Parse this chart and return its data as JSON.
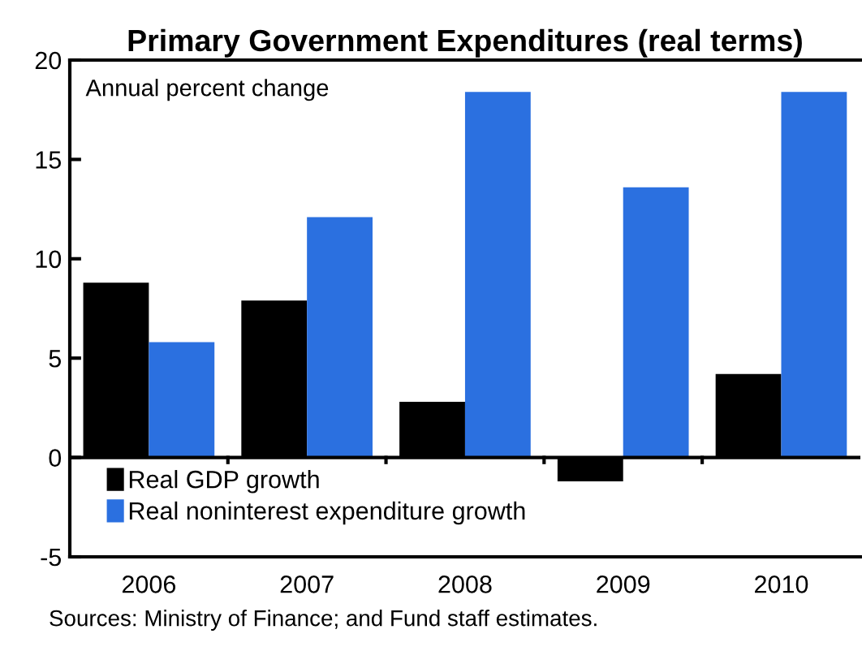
{
  "chart_data": {
    "type": "bar",
    "title": "Primary Government Expenditures (real terms)",
    "categories": [
      "2006",
      "2007",
      "2008",
      "2009",
      "2010"
    ],
    "series": [
      {
        "name": "Real GDP growth",
        "color": "#000000",
        "values": [
          8.8,
          7.9,
          2.8,
          -1.2,
          4.2
        ]
      },
      {
        "name": "Real noninterest expenditure growth",
        "color": "#2b70e0",
        "values": [
          5.8,
          12.1,
          18.4,
          13.6,
          18.4
        ]
      }
    ],
    "ylim": [
      -5,
      20
    ],
    "yticks": [
      {
        "value": -5,
        "label": "-5"
      },
      0,
      5,
      10,
      15,
      20
    ],
    "legend": "bottom left",
    "annotations": [
      "Annual percent change",
      "Sources: Ministry of Finance; and Fund staff estimates."
    ]
  }
}
